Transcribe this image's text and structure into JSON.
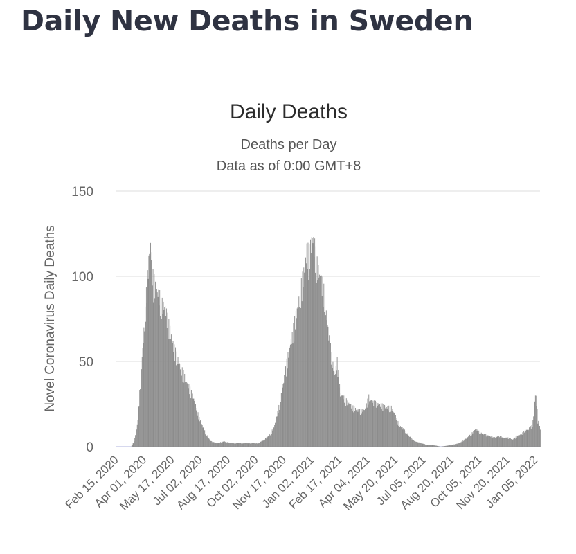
{
  "page": {
    "title": "Daily New Deaths in Sweden"
  },
  "chart_data": {
    "type": "bar",
    "title": "Daily Deaths",
    "subtitle": "Deaths per Day",
    "subtitle2": "Data as of 0:00 GMT+8",
    "xlabel": "",
    "ylabel": "Novel Coronavirus Daily Deaths",
    "ylim": [
      0,
      150
    ],
    "yticks": [
      0,
      50,
      100,
      150
    ],
    "grid": true,
    "bar_color": "#8c8c8c",
    "x_ticks": [
      "Feb 15, 2020",
      "Apr 01, 2020",
      "May 17, 2020",
      "Jul 02, 2020",
      "Aug 17, 2020",
      "Oct 02, 2020",
      "Nov 17, 2020",
      "Jan 02, 2021",
      "Feb 17, 2021",
      "Apr 04, 2021",
      "May 20, 2021",
      "Jul 05, 2021",
      "Aug 20, 2021",
      "Oct 05, 2021",
      "Nov 20, 2021",
      "Jan 05, 2022"
    ],
    "x_start": "2020-02-15",
    "x_end": "2022-01-12",
    "series": [
      {
        "name": "",
        "points": [
          [
            "2020-03-10",
            0
          ],
          [
            "2020-03-15",
            3
          ],
          [
            "2020-03-20",
            12
          ],
          [
            "2020-03-25",
            35
          ],
          [
            "2020-03-30",
            60
          ],
          [
            "2020-04-04",
            85
          ],
          [
            "2020-04-08",
            105
          ],
          [
            "2020-04-10",
            115
          ],
          [
            "2020-04-12",
            110
          ],
          [
            "2020-04-15",
            95
          ],
          [
            "2020-04-20",
            88
          ],
          [
            "2020-04-25",
            85
          ],
          [
            "2020-04-30",
            80
          ],
          [
            "2020-05-05",
            78
          ],
          [
            "2020-05-10",
            70
          ],
          [
            "2020-05-15",
            62
          ],
          [
            "2020-05-20",
            55
          ],
          [
            "2020-05-25",
            50
          ],
          [
            "2020-05-30",
            45
          ],
          [
            "2020-06-05",
            40
          ],
          [
            "2020-06-10",
            36
          ],
          [
            "2020-06-15",
            32
          ],
          [
            "2020-06-20",
            28
          ],
          [
            "2020-06-25",
            22
          ],
          [
            "2020-06-30",
            16
          ],
          [
            "2020-07-05",
            12
          ],
          [
            "2020-07-10",
            8
          ],
          [
            "2020-07-15",
            5
          ],
          [
            "2020-07-20",
            3
          ],
          [
            "2020-07-30",
            2
          ],
          [
            "2020-08-10",
            3
          ],
          [
            "2020-08-20",
            2
          ],
          [
            "2020-09-01",
            2
          ],
          [
            "2020-09-20",
            2
          ],
          [
            "2020-10-05",
            2
          ],
          [
            "2020-10-15",
            4
          ],
          [
            "2020-10-25",
            7
          ],
          [
            "2020-11-01",
            12
          ],
          [
            "2020-11-05",
            18
          ],
          [
            "2020-11-10",
            25
          ],
          [
            "2020-11-15",
            35
          ],
          [
            "2020-11-20",
            45
          ],
          [
            "2020-11-25",
            55
          ],
          [
            "2020-11-30",
            62
          ],
          [
            "2020-12-05",
            72
          ],
          [
            "2020-12-10",
            80
          ],
          [
            "2020-12-15",
            90
          ],
          [
            "2020-12-20",
            100
          ],
          [
            "2020-12-24",
            110
          ],
          [
            "2020-12-28",
            108
          ],
          [
            "2021-01-02",
            118
          ],
          [
            "2021-01-06",
            112
          ],
          [
            "2021-01-10",
            102
          ],
          [
            "2021-01-15",
            95
          ],
          [
            "2021-01-20",
            90
          ],
          [
            "2021-01-25",
            75
          ],
          [
            "2021-01-30",
            60
          ],
          [
            "2021-02-04",
            48
          ],
          [
            "2021-02-08",
            40
          ],
          [
            "2021-02-12",
            48
          ],
          [
            "2021-02-17",
            30
          ],
          [
            "2021-02-22",
            28
          ],
          [
            "2021-03-01",
            25
          ],
          [
            "2021-03-10",
            22
          ],
          [
            "2021-03-20",
            20
          ],
          [
            "2021-03-30",
            21
          ],
          [
            "2021-04-05",
            28
          ],
          [
            "2021-04-12",
            25
          ],
          [
            "2021-04-20",
            24
          ],
          [
            "2021-04-28",
            23
          ],
          [
            "2021-05-05",
            22
          ],
          [
            "2021-05-12",
            22
          ],
          [
            "2021-05-18",
            18
          ],
          [
            "2021-05-25",
            12
          ],
          [
            "2021-06-01",
            10
          ],
          [
            "2021-06-10",
            6
          ],
          [
            "2021-06-20",
            3
          ],
          [
            "2021-06-30",
            2
          ],
          [
            "2021-07-10",
            1
          ],
          [
            "2021-07-20",
            1
          ],
          [
            "2021-08-01",
            0
          ],
          [
            "2021-08-20",
            1
          ],
          [
            "2021-09-01",
            2
          ],
          [
            "2021-09-10",
            4
          ],
          [
            "2021-09-20",
            7
          ],
          [
            "2021-09-28",
            10
          ],
          [
            "2021-10-05",
            8
          ],
          [
            "2021-10-12",
            7
          ],
          [
            "2021-10-20",
            6
          ],
          [
            "2021-10-28",
            5
          ],
          [
            "2021-11-05",
            6
          ],
          [
            "2021-11-12",
            5
          ],
          [
            "2021-11-20",
            5
          ],
          [
            "2021-11-28",
            4
          ],
          [
            "2021-12-05",
            6
          ],
          [
            "2021-12-12",
            7
          ],
          [
            "2021-12-18",
            9
          ],
          [
            "2021-12-24",
            10
          ],
          [
            "2021-12-30",
            12
          ],
          [
            "2022-01-02",
            20
          ],
          [
            "2022-01-04",
            30
          ],
          [
            "2022-01-06",
            25
          ],
          [
            "2022-01-08",
            15
          ],
          [
            "2022-01-12",
            10
          ]
        ]
      }
    ]
  }
}
